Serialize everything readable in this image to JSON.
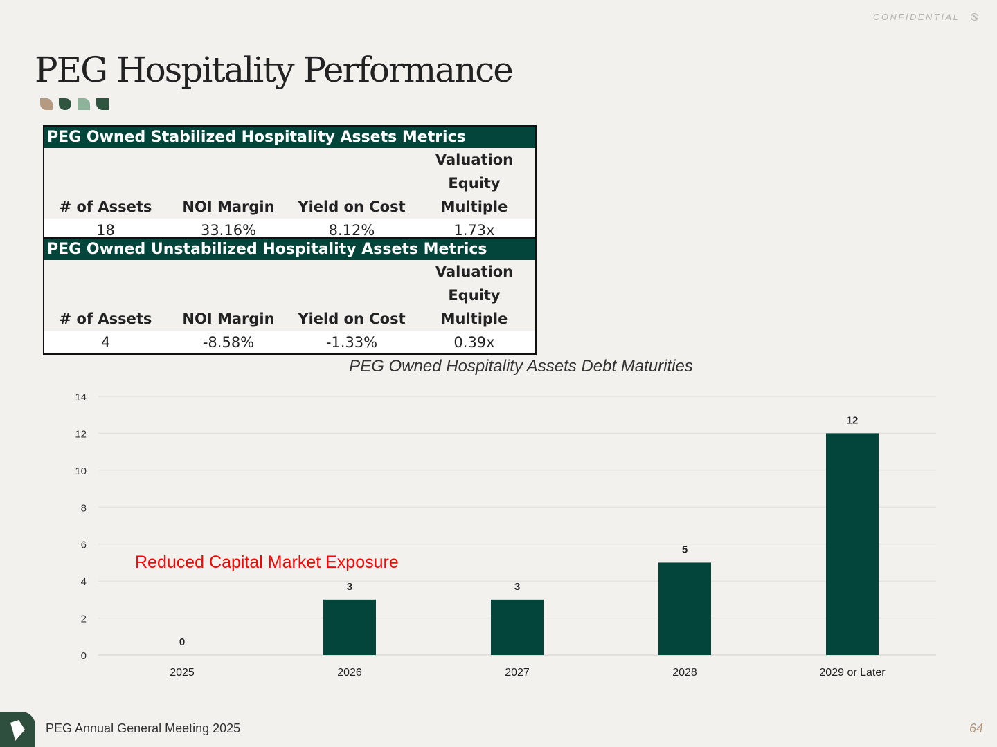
{
  "header": {
    "confidential": "CONFIDENTIAL",
    "title": "PEG Hospitality Performance"
  },
  "colors": {
    "accent": "#03453a",
    "leaf": [
      "#b39a80",
      "#2f5440",
      "#8fb39a",
      "#2f5440"
    ],
    "annotation": "#ff0000"
  },
  "tables": [
    {
      "title": "PEG Owned Stabilized Hospitality Assets Metrics",
      "headers": [
        "# of Assets",
        "NOI Margin",
        "Yield on Cost",
        "Valuation\nEquity Multiple"
      ],
      "values": [
        "18",
        "33.16%",
        "8.12%",
        "1.73x"
      ]
    },
    {
      "title": "PEG Owned Unstabilized Hospitality Assets Metrics",
      "headers": [
        "# of Assets",
        "NOI Margin",
        "Yield on Cost",
        "Valuation\nEquity Multiple"
      ],
      "values": [
        "4",
        "-8.58%",
        "-1.33%",
        "0.39x"
      ]
    }
  ],
  "chart_data": {
    "type": "bar",
    "title": "PEG Owned Hospitality Assets Debt Maturities",
    "categories": [
      "2025",
      "2026",
      "2027",
      "2028",
      "2029 or Later"
    ],
    "values": [
      0,
      3,
      3,
      5,
      12
    ],
    "ylim": [
      0,
      14
    ],
    "yticks": [
      0,
      2,
      4,
      6,
      8,
      10,
      12,
      14
    ],
    "grid": true,
    "xlabel": "",
    "ylabel": "",
    "bar_color": "#03453a",
    "annotation": "Reduced Capital Market Exposure"
  },
  "footer": {
    "text": "PEG Annual General Meeting 2025",
    "page": "64"
  }
}
